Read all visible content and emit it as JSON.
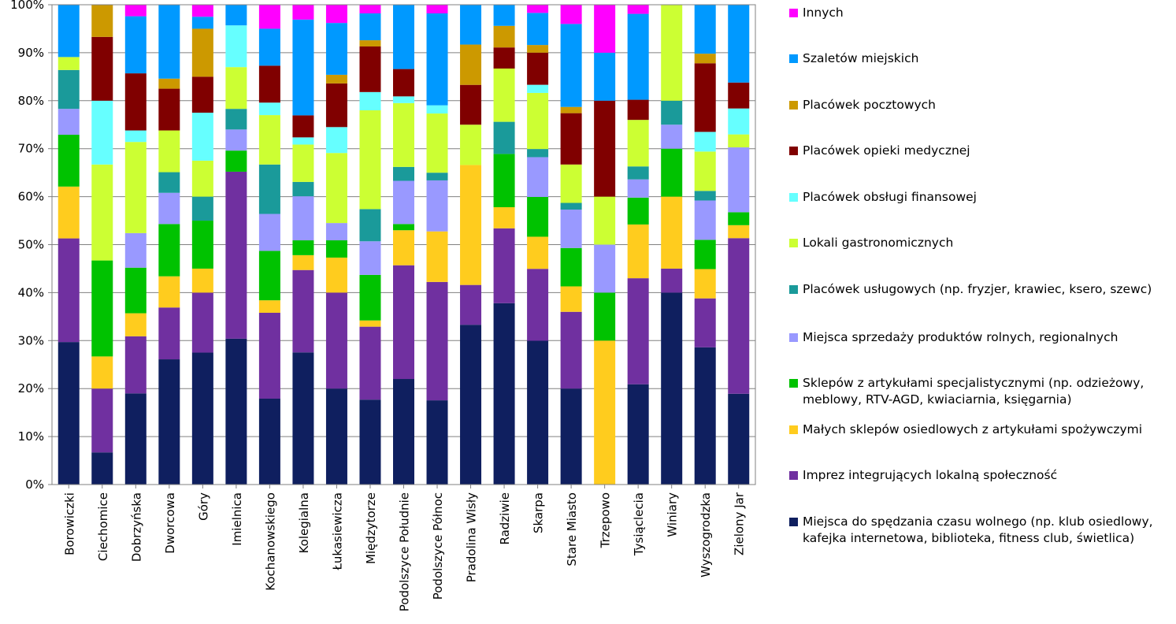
{
  "chart_data": {
    "type": "bar",
    "stacked": true,
    "percent": true,
    "ylim": [
      0,
      100
    ],
    "yticks": [
      "0%",
      "10%",
      "20%",
      "30%",
      "40%",
      "50%",
      "60%",
      "70%",
      "80%",
      "90%",
      "100%"
    ],
    "categories": [
      "Borowiczki",
      "Ciechomice",
      "Dobrzyńska",
      "Dworcowa",
      "Góry",
      "Imielnica",
      "Kochanowskiego",
      "Kolegialna",
      "Łukasiewicza",
      "Międzytorze",
      "Podolszyce Południe",
      "Podolszyce Północ",
      "Pradolina Wisły",
      "Radziwie",
      "Skarpa",
      "Stare Miasto",
      "Trzepowo",
      "Tysiąclecia",
      "Winiary",
      "Wyszogrodzka",
      "Zielony Jar"
    ],
    "series": [
      {
        "name": "Miejsca do spędzania czasu wolnego (np. klub osiedlowy, kafejka internetowa, biblioteka, fitness club, świetlica)",
        "color": "#0f1f5f",
        "values": [
          29.7,
          6.7,
          19.0,
          26.1,
          27.5,
          30.4,
          17.9,
          27.6,
          20.0,
          17.7,
          22.0,
          17.5,
          33.3,
          37.8,
          30.0,
          20.0,
          0.0,
          20.9,
          40.0,
          28.6,
          18.9
        ]
      },
      {
        "name": "Imprez integrujących lokalną społeczność",
        "color": "#7030a0",
        "values": [
          21.6,
          13.3,
          11.9,
          10.8,
          12.5,
          34.8,
          17.9,
          17.2,
          20.0,
          15.2,
          23.7,
          24.6,
          8.3,
          15.6,
          15.0,
          16.0,
          0.0,
          22.1,
          5.0,
          10.2,
          32.4
        ]
      },
      {
        "name": "Małych sklepów osiedlowych z artykułami spożywczymi",
        "color": "#ffcc1e",
        "values": [
          10.8,
          6.7,
          4.8,
          6.5,
          5.0,
          0.0,
          2.6,
          3.1,
          7.3,
          1.3,
          7.3,
          10.5,
          25.0,
          4.4,
          6.7,
          5.3,
          30.0,
          11.2,
          15.0,
          6.1,
          2.7
        ]
      },
      {
        "name": "Sklepów z artykułami specjalistycznymi (np. odzieżowy, meblowy, RTV-AGD, kwiaciarnia, księgarnia)",
        "color": "#00c200",
        "values": [
          10.8,
          20.0,
          9.5,
          10.9,
          10.0,
          4.4,
          10.3,
          3.1,
          3.6,
          9.5,
          1.3,
          0.0,
          0.0,
          11.1,
          8.3,
          8.0,
          10.0,
          5.6,
          10.0,
          6.1,
          2.7
        ]
      },
      {
        "name": "Miejsca sprzedaży produktów rolnych, regionalnych",
        "color": "#9999ff",
        "values": [
          5.4,
          0.0,
          7.2,
          6.5,
          0.0,
          4.4,
          7.7,
          9.2,
          3.6,
          7.0,
          9.0,
          10.6,
          0.0,
          0.0,
          8.3,
          8.0,
          10.0,
          3.8,
          5.0,
          8.2,
          13.5
        ]
      },
      {
        "name": "Placówek usługowych (np. fryzjer, krawiec, ksero, szewc)",
        "color": "#1a9a9a",
        "values": [
          8.1,
          0.0,
          0.0,
          4.3,
          5.0,
          4.3,
          10.3,
          3.0,
          0.0,
          6.7,
          2.9,
          1.6,
          0.0,
          6.7,
          1.7,
          1.4,
          0.0,
          2.7,
          5.0,
          2.0,
          0.0
        ]
      },
      {
        "name": "Lokali gastronomicznych",
        "color": "#ccff33",
        "values": [
          2.7,
          20.0,
          19.0,
          8.7,
          7.5,
          8.7,
          10.3,
          7.8,
          14.6,
          20.6,
          13.3,
          12.3,
          8.4,
          11.1,
          11.7,
          8.0,
          10.0,
          9.7,
          20.0,
          8.2,
          2.7
        ]
      },
      {
        "name": "Placówek obsługi finansowej",
        "color": "#66ffff",
        "values": [
          0.0,
          13.3,
          2.4,
          0.0,
          10.0,
          8.7,
          2.6,
          1.5,
          5.4,
          3.8,
          1.4,
          1.7,
          0.0,
          0.0,
          1.7,
          0.0,
          0.0,
          0.0,
          0.0,
          4.1,
          5.4
        ]
      },
      {
        "name": "Placówek opieki medycznej",
        "color": "#800000",
        "values": [
          0.0,
          13.3,
          11.9,
          8.7,
          7.5,
          0.0,
          7.7,
          4.6,
          9.1,
          9.5,
          5.7,
          0.0,
          8.3,
          4.4,
          6.7,
          10.7,
          20.0,
          4.2,
          0.0,
          14.3,
          5.4
        ]
      },
      {
        "name": "Placówek pocztowych",
        "color": "#cc9900",
        "values": [
          0.0,
          6.7,
          0.0,
          2.1,
          10.0,
          0.0,
          0.0,
          0.0,
          1.8,
          1.3,
          0.0,
          0.0,
          8.4,
          4.5,
          1.6,
          1.3,
          0.0,
          0.0,
          0.0,
          2.0,
          0.0
        ]
      },
      {
        "name": "Szaletów miejskich",
        "color": "#0099ff",
        "values": [
          10.9,
          0.0,
          11.9,
          15.4,
          2.5,
          4.3,
          7.7,
          20.0,
          10.8,
          5.6,
          13.4,
          19.1,
          8.3,
          4.4,
          6.7,
          17.3,
          10.0,
          17.9,
          0.0,
          10.2,
          16.2
        ]
      },
      {
        "name": "Innych",
        "color": "#ff00ff",
        "values": [
          0.0,
          0.0,
          2.4,
          0.0,
          2.5,
          0.0,
          5.0,
          3.1,
          3.8,
          1.8,
          0.0,
          1.8,
          0.0,
          0.0,
          1.7,
          4.0,
          10.0,
          1.9,
          0.0,
          0.0,
          0.0
        ]
      }
    ]
  },
  "legend": {
    "entries": [
      {
        "label": "Innych",
        "color": "#ff00ff"
      },
      {
        "label": "Szaletów miejskich",
        "color": "#0099ff"
      },
      {
        "label": "Placówek pocztowych",
        "color": "#cc9900"
      },
      {
        "label": "Placówek opieki medycznej",
        "color": "#800000"
      },
      {
        "label": "Placówek obsługi finansowej",
        "color": "#66ffff"
      },
      {
        "label": "Lokali gastronomicznych",
        "color": "#ccff33"
      },
      {
        "label": "Placówek usługowych (np. fryzjer, krawiec, ksero, szewc)",
        "color": "#1a9a9a"
      },
      {
        "label": "Miejsca sprzedaży produktów rolnych, regionalnych",
        "color": "#9999ff"
      },
      {
        "label": "Sklepów z artykułami specjalistycznymi (np. odzieżowy, meblowy, RTV-AGD, kwiaciarnia, księgarnia)",
        "color": "#00c200"
      },
      {
        "label": "Małych sklepów osiedlowych z artykułami spożywczymi",
        "color": "#ffcc1e"
      },
      {
        "label": "Imprez integrujących lokalną społeczność",
        "color": "#7030a0"
      },
      {
        "label": "Miejsca do spędzania czasu wolnego (np. klub osiedlowy, kafejka internetowa, biblioteka, fitness club, świetlica)",
        "color": "#0f1f5f"
      }
    ]
  }
}
